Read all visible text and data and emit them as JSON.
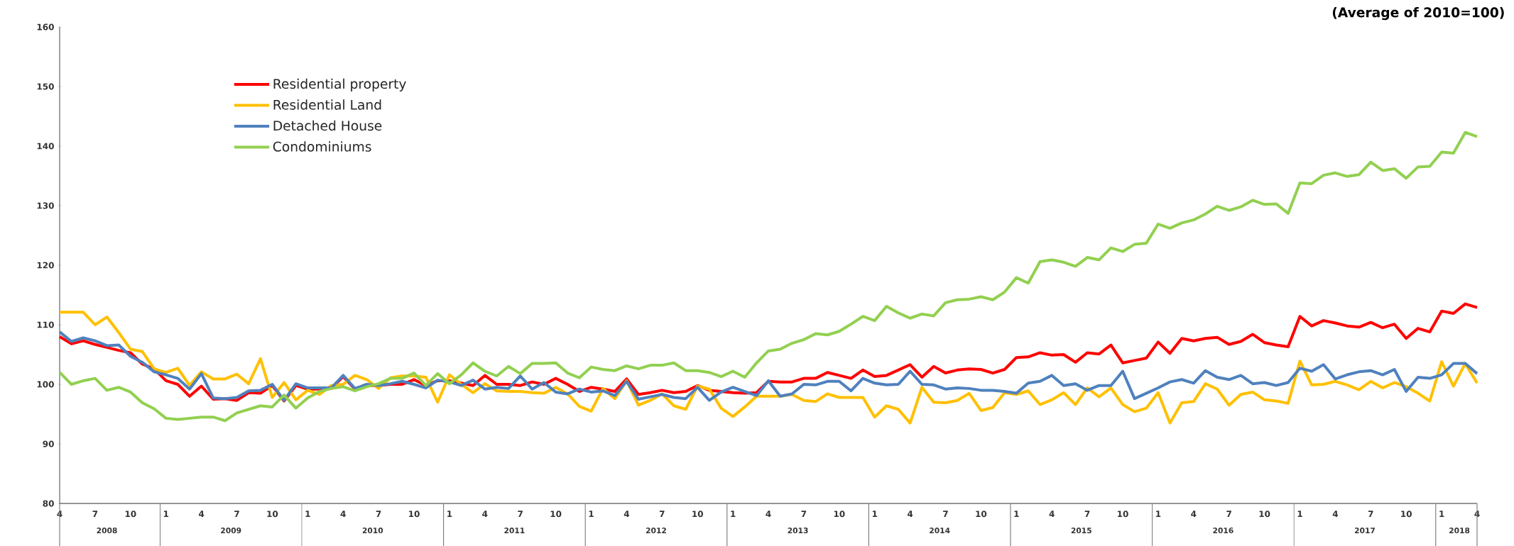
{
  "chart_data": {
    "type": "line",
    "subtitle": "(Average of 2010=100)",
    "x": [
      "2008-04",
      "2008-05",
      "2008-06",
      "2008-07",
      "2008-08",
      "2008-09",
      "2008-10",
      "2008-11",
      "2008-12",
      "2009-01",
      "2009-02",
      "2009-03",
      "2009-04",
      "2009-05",
      "2009-06",
      "2009-07",
      "2009-08",
      "2009-09",
      "2009-10",
      "2009-11",
      "2009-12",
      "2010-01",
      "2010-02",
      "2010-03",
      "2010-04",
      "2010-05",
      "2010-06",
      "2010-07",
      "2010-08",
      "2010-09",
      "2010-10",
      "2010-11",
      "2010-12",
      "2011-01",
      "2011-02",
      "2011-03",
      "2011-04",
      "2011-05",
      "2011-06",
      "2011-07",
      "2011-08",
      "2011-09",
      "2011-10",
      "2011-11",
      "2011-12",
      "2012-01",
      "2012-02",
      "2012-03",
      "2012-04",
      "2012-05",
      "2012-06",
      "2012-07",
      "2012-08",
      "2012-09",
      "2012-10",
      "2012-11",
      "2012-12",
      "2013-01",
      "2013-02",
      "2013-03",
      "2013-04",
      "2013-05",
      "2013-06",
      "2013-07",
      "2013-08",
      "2013-09",
      "2013-10",
      "2013-11",
      "2013-12",
      "2014-01",
      "2014-02",
      "2014-03",
      "2014-04",
      "2014-05",
      "2014-06",
      "2014-07",
      "2014-08",
      "2014-09",
      "2014-10",
      "2014-11",
      "2014-12",
      "2015-01",
      "2015-02",
      "2015-03",
      "2015-04",
      "2015-05",
      "2015-06",
      "2015-07",
      "2015-08",
      "2015-09",
      "2015-10",
      "2015-11",
      "2015-12",
      "2016-01",
      "2016-02",
      "2016-03",
      "2016-04",
      "2016-05",
      "2016-06",
      "2016-07",
      "2016-08",
      "2016-09",
      "2016-10",
      "2016-11",
      "2016-12",
      "2017-01",
      "2017-02",
      "2017-03",
      "2017-04",
      "2017-05",
      "2017-06",
      "2017-07",
      "2017-08",
      "2017-09",
      "2017-10",
      "2017-11",
      "2017-12",
      "2018-01",
      "2018-02",
      "2018-03",
      "2018-04"
    ],
    "series": [
      {
        "name": "Residential property",
        "color": "#ff0000",
        "values": [
          108.0,
          106.8,
          107.3,
          106.7,
          106.2,
          105.7,
          105.3,
          103.4,
          102.6,
          100.6,
          100.0,
          98.0,
          99.7,
          97.5,
          97.6,
          97.3,
          98.6,
          98.5,
          99.8,
          97.2,
          99.8,
          99.2,
          99.2,
          99.3,
          101.3,
          99.2,
          99.8,
          99.8,
          100.0,
          100.0,
          100.8,
          99.8,
          100.6,
          100.6,
          100.2,
          99.8,
          101.5,
          100.0,
          100.0,
          99.8,
          100.4,
          100.0,
          101.0,
          100.0,
          98.8,
          99.5,
          99.2,
          98.8,
          100.9,
          98.3,
          98.6,
          99.0,
          98.6,
          98.8,
          99.8,
          99.0,
          98.8,
          98.6,
          98.5,
          98.6,
          100.5,
          100.4,
          100.4,
          101.0,
          101.0,
          102.0,
          101.5,
          101.0,
          102.4,
          101.3,
          101.5,
          102.4,
          103.3,
          101.2,
          103.0,
          101.9,
          102.4,
          102.6,
          102.5,
          101.9,
          102.5,
          104.5,
          104.6,
          105.3,
          104.9,
          105.0,
          103.7,
          105.3,
          105.1,
          106.6,
          103.6,
          104.0,
          104.4,
          107.1,
          105.2,
          107.7,
          107.3,
          107.7,
          107.9,
          106.7,
          107.2,
          108.4,
          107.0,
          106.6,
          106.3,
          111.4,
          109.8,
          110.7,
          110.3,
          109.8,
          109.6,
          110.4,
          109.5,
          110.1,
          107.7,
          109.4,
          108.8,
          112.3,
          111.9,
          113.5,
          112.9
        ]
      },
      {
        "name": "Residential Land",
        "color": "#ffc000",
        "values": [
          112.1,
          112.1,
          112.1,
          110.0,
          111.3,
          108.7,
          105.9,
          105.5,
          102.6,
          102.0,
          102.7,
          99.8,
          102.1,
          100.9,
          100.9,
          101.7,
          100.1,
          104.3,
          97.8,
          100.3,
          97.4,
          99.0,
          98.3,
          99.8,
          100.0,
          101.5,
          100.8,
          99.3,
          101.1,
          101.4,
          101.4,
          101.2,
          97.0,
          101.6,
          100.0,
          98.6,
          100.1,
          98.9,
          98.8,
          98.8,
          98.6,
          98.5,
          99.5,
          98.4,
          96.3,
          95.5,
          99.3,
          97.6,
          100.6,
          96.5,
          97.3,
          98.4,
          96.4,
          95.8,
          99.7,
          99.2,
          96.0,
          94.6,
          96.2,
          98.0,
          98.0,
          98.0,
          98.3,
          97.3,
          97.1,
          98.4,
          97.8,
          97.8,
          97.8,
          94.5,
          96.4,
          95.8,
          93.5,
          99.5,
          97.0,
          96.9,
          97.3,
          98.5,
          95.6,
          96.1,
          98.6,
          98.3,
          98.9,
          96.6,
          97.4,
          98.6,
          96.6,
          99.4,
          97.9,
          99.4,
          96.6,
          95.4,
          96.0,
          98.6,
          93.5,
          96.9,
          97.1,
          100.1,
          99.2,
          96.5,
          98.3,
          98.7,
          97.4,
          97.2,
          96.8,
          103.9,
          99.9,
          100.0,
          100.5,
          99.9,
          99.1,
          100.5,
          99.4,
          100.3,
          99.6,
          98.5,
          97.2,
          103.8,
          99.7,
          103.5,
          100.2
        ]
      },
      {
        "name": "Detached House",
        "color": "#4f81bd",
        "values": [
          108.8,
          107.2,
          107.8,
          107.3,
          106.5,
          106.6,
          104.7,
          103.7,
          102.1,
          101.6,
          101.0,
          99.2,
          101.8,
          97.7,
          97.6,
          97.8,
          98.9,
          99.0,
          100.0,
          97.3,
          100.1,
          99.4,
          99.4,
          99.4,
          101.5,
          99.3,
          100.0,
          99.8,
          100.1,
          100.5,
          100.0,
          99.4,
          100.7,
          100.4,
          99.8,
          100.7,
          99.2,
          99.5,
          99.3,
          101.4,
          99.2,
          100.3,
          98.7,
          98.4,
          99.2,
          98.7,
          98.9,
          98.1,
          100.5,
          97.5,
          97.9,
          98.3,
          97.8,
          97.6,
          99.5,
          97.3,
          98.7,
          99.5,
          98.8,
          98.1,
          100.6,
          98.0,
          98.4,
          100.0,
          99.9,
          100.5,
          100.5,
          98.9,
          101.0,
          100.2,
          99.9,
          100.0,
          102.2,
          100.0,
          99.9,
          99.2,
          99.4,
          99.3,
          99.0,
          99.0,
          98.8,
          98.5,
          100.2,
          100.5,
          101.5,
          99.8,
          100.1,
          99.0,
          99.8,
          99.8,
          102.2,
          97.6,
          98.5,
          99.4,
          100.4,
          100.8,
          100.2,
          102.3,
          101.2,
          100.8,
          101.5,
          100.1,
          100.3,
          99.8,
          100.3,
          102.7,
          102.2,
          103.3,
          100.9,
          101.6,
          102.1,
          102.3,
          101.6,
          102.5,
          98.8,
          101.2,
          101.0,
          101.6,
          103.5,
          103.5,
          101.8
        ]
      },
      {
        "name": "Condominiums",
        "color": "#92d050",
        "values": [
          102.0,
          100.0,
          100.6,
          101.0,
          99.0,
          99.5,
          98.7,
          96.9,
          95.9,
          94.3,
          94.1,
          94.3,
          94.5,
          94.5,
          93.9,
          95.2,
          95.8,
          96.4,
          96.2,
          98.2,
          96.0,
          97.7,
          98.8,
          99.3,
          99.6,
          98.9,
          99.6,
          100.1,
          101.0,
          101.0,
          101.9,
          99.8,
          101.8,
          100.1,
          101.6,
          103.6,
          102.2,
          101.4,
          103.0,
          101.8,
          103.5,
          103.5,
          103.6,
          101.9,
          101.1,
          102.9,
          102.5,
          102.3,
          103.1,
          102.6,
          103.2,
          103.2,
          103.6,
          102.3,
          102.3,
          102.0,
          101.3,
          102.2,
          101.2,
          103.6,
          105.6,
          105.9,
          106.9,
          107.5,
          108.5,
          108.3,
          108.9,
          110.1,
          111.4,
          110.7,
          113.1,
          112.0,
          111.1,
          111.8,
          111.5,
          113.7,
          114.2,
          114.3,
          114.7,
          114.2,
          115.5,
          117.9,
          117.0,
          120.6,
          120.9,
          120.5,
          119.8,
          121.3,
          120.9,
          122.9,
          122.3,
          123.5,
          123.7,
          126.9,
          126.2,
          127.1,
          127.6,
          128.6,
          129.9,
          129.2,
          129.8,
          130.9,
          130.2,
          130.3,
          128.7,
          133.8,
          133.7,
          135.1,
          135.5,
          134.9,
          135.2,
          137.3,
          135.9,
          136.2,
          134.6,
          136.5,
          136.6,
          139.0,
          138.8,
          142.3,
          141.6
        ]
      }
    ],
    "xlim": [
      "2008-04",
      "2018-04"
    ],
    "xticks": [
      {
        "value": "2008-04",
        "label": "4"
      },
      {
        "value": "2008-07",
        "label": "7"
      },
      {
        "value": "2008-10",
        "label": "10"
      },
      {
        "value": "2009-01",
        "label": "1"
      },
      {
        "value": "2009-04",
        "label": "4"
      },
      {
        "value": "2009-07",
        "label": "7"
      },
      {
        "value": "2009-10",
        "label": "10"
      },
      {
        "value": "2010-01",
        "label": "1"
      },
      {
        "value": "2010-04",
        "label": "4"
      },
      {
        "value": "2010-07",
        "label": "7"
      },
      {
        "value": "2010-10",
        "label": "10"
      },
      {
        "value": "2011-01",
        "label": "1"
      },
      {
        "value": "2011-04",
        "label": "4"
      },
      {
        "value": "2011-07",
        "label": "7"
      },
      {
        "value": "2011-10",
        "label": "10"
      },
      {
        "value": "2012-01",
        "label": "1"
      },
      {
        "value": "2012-04",
        "label": "4"
      },
      {
        "value": "2012-07",
        "label": "7"
      },
      {
        "value": "2012-10",
        "label": "10"
      },
      {
        "value": "2013-01",
        "label": "1"
      },
      {
        "value": "2013-04",
        "label": "4"
      },
      {
        "value": "2013-07",
        "label": "7"
      },
      {
        "value": "2013-10",
        "label": "10"
      },
      {
        "value": "2014-01",
        "label": "1"
      },
      {
        "value": "2014-04",
        "label": "4"
      },
      {
        "value": "2014-07",
        "label": "7"
      },
      {
        "value": "2014-10",
        "label": "10"
      },
      {
        "value": "2015-01",
        "label": "1"
      },
      {
        "value": "2015-04",
        "label": "4"
      },
      {
        "value": "2015-07",
        "label": "7"
      },
      {
        "value": "2015-10",
        "label": "10"
      },
      {
        "value": "2016-01",
        "label": "1"
      },
      {
        "value": "2016-04",
        "label": "4"
      },
      {
        "value": "2016-07",
        "label": "7"
      },
      {
        "value": "2016-10",
        "label": "10"
      },
      {
        "value": "2017-01",
        "label": "1"
      },
      {
        "value": "2017-04",
        "label": "4"
      },
      {
        "value": "2017-07",
        "label": "7"
      },
      {
        "value": "2017-10",
        "label": "10"
      },
      {
        "value": "2018-01",
        "label": "1"
      },
      {
        "value": "2018-04",
        "label": "4"
      }
    ],
    "ylim": [
      80,
      160
    ],
    "yticks": [
      80,
      90,
      100,
      110,
      120,
      130,
      140,
      150,
      160
    ],
    "annotations": [
      "2008",
      "2009",
      "2010",
      "2011",
      "2012",
      "2013",
      "2014",
      "2015",
      "2016",
      "2017",
      "2018"
    ],
    "legend": "top left",
    "line_style": "solid",
    "marker": "none"
  }
}
